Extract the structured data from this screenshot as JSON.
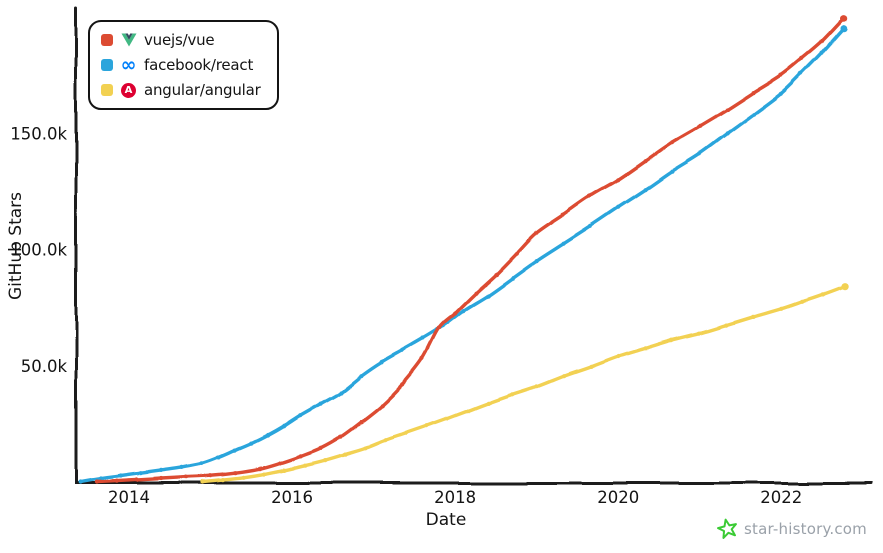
{
  "chart_data": {
    "type": "line",
    "title": "",
    "xlabel": "Date",
    "ylabel": "GitHub Stars",
    "grid": false,
    "legend_position": "top-left",
    "x_range_years": [
      2013.35,
      2023.1
    ],
    "y_range_stars": [
      0,
      202600
    ],
    "x_ticks": [
      {
        "year": 2014,
        "label": "2014"
      },
      {
        "year": 2016,
        "label": "2016"
      },
      {
        "year": 2018,
        "label": "2018"
      },
      {
        "year": 2020,
        "label": "2020"
      },
      {
        "year": 2022,
        "label": "2022"
      }
    ],
    "y_ticks": [
      {
        "stars": 50000,
        "label": "50.0k"
      },
      {
        "stars": 100000,
        "label": "100.0k"
      },
      {
        "stars": 150000,
        "label": "150.0k"
      }
    ],
    "series": [
      {
        "name": "vuejs/vue",
        "color": "#DC4B32",
        "icon": "vue-logo",
        "icon_colors": {
          "primary": "#41B883",
          "secondary": "#35495E"
        },
        "points": [
          [
            2013.6,
            0
          ],
          [
            2013.85,
            400
          ],
          [
            2014.1,
            900
          ],
          [
            2014.4,
            1500
          ],
          [
            2014.7,
            2100
          ],
          [
            2015.0,
            2700
          ],
          [
            2015.3,
            3800
          ],
          [
            2015.6,
            5500
          ],
          [
            2015.85,
            8000
          ],
          [
            2016.1,
            11000
          ],
          [
            2016.35,
            14500
          ],
          [
            2016.6,
            19500
          ],
          [
            2016.85,
            26000
          ],
          [
            2017.1,
            33000
          ],
          [
            2017.35,
            42000
          ],
          [
            2017.6,
            53000
          ],
          [
            2017.8,
            66000
          ],
          [
            2018.0,
            72500
          ],
          [
            2018.25,
            81000
          ],
          [
            2018.5,
            89000
          ],
          [
            2018.75,
            98000
          ],
          [
            2019.0,
            107000
          ],
          [
            2019.33,
            115000
          ],
          [
            2019.66,
            123000
          ],
          [
            2020.0,
            130000
          ],
          [
            2020.33,
            138000
          ],
          [
            2020.66,
            146000
          ],
          [
            2021.0,
            153000
          ],
          [
            2021.33,
            160000
          ],
          [
            2021.66,
            167500
          ],
          [
            2022.0,
            175000
          ],
          [
            2022.25,
            182000
          ],
          [
            2022.5,
            189500
          ],
          [
            2022.77,
            199500
          ]
        ]
      },
      {
        "name": "facebook/react",
        "color": "#2BA5DC",
        "icon": "meta-infinity-logo",
        "icon_colors": {
          "primary": "#0180FA"
        },
        "points": [
          [
            2013.4,
            0
          ],
          [
            2013.65,
            1500
          ],
          [
            2013.9,
            2600
          ],
          [
            2014.15,
            3800
          ],
          [
            2014.4,
            5000
          ],
          [
            2014.65,
            6300
          ],
          [
            2014.9,
            8000
          ],
          [
            2015.1,
            10500
          ],
          [
            2015.3,
            13500
          ],
          [
            2015.5,
            16500
          ],
          [
            2015.7,
            20000
          ],
          [
            2015.9,
            24000
          ],
          [
            2016.1,
            28500
          ],
          [
            2016.35,
            33500
          ],
          [
            2016.6,
            38500
          ],
          [
            2016.85,
            45500
          ],
          [
            2017.1,
            51500
          ],
          [
            2017.35,
            56500
          ],
          [
            2017.6,
            61500
          ],
          [
            2017.85,
            67000
          ],
          [
            2018.1,
            73500
          ],
          [
            2018.4,
            80000
          ],
          [
            2018.7,
            87500
          ],
          [
            2019.0,
            95000
          ],
          [
            2019.33,
            102500
          ],
          [
            2019.66,
            110000
          ],
          [
            2020.0,
            118000
          ],
          [
            2020.33,
            125500
          ],
          [
            2020.66,
            133500
          ],
          [
            2021.0,
            141000
          ],
          [
            2021.33,
            149500
          ],
          [
            2021.66,
            158000
          ],
          [
            2022.0,
            167000
          ],
          [
            2022.25,
            175500
          ],
          [
            2022.5,
            184500
          ],
          [
            2022.77,
            195000
          ]
        ]
      },
      {
        "name": "angular/angular",
        "color": "#F2D152",
        "icon": "angular-logo",
        "icon_colors": {
          "primary": "#DD0031",
          "letter": "A"
        },
        "points": [
          [
            2014.9,
            0
          ],
          [
            2015.15,
            800
          ],
          [
            2015.4,
            1800
          ],
          [
            2015.65,
            3200
          ],
          [
            2015.9,
            5000
          ],
          [
            2016.15,
            7000
          ],
          [
            2016.4,
            9200
          ],
          [
            2016.65,
            11800
          ],
          [
            2016.9,
            14500
          ],
          [
            2017.15,
            18000
          ],
          [
            2017.4,
            21000
          ],
          [
            2017.65,
            24000
          ],
          [
            2017.9,
            27200
          ],
          [
            2018.15,
            30500
          ],
          [
            2018.4,
            33800
          ],
          [
            2018.7,
            37500
          ],
          [
            2019.0,
            41000
          ],
          [
            2019.33,
            45500
          ],
          [
            2019.66,
            49500
          ],
          [
            2020.0,
            54000
          ],
          [
            2020.33,
            57500
          ],
          [
            2020.66,
            61000
          ],
          [
            2021.0,
            64000
          ],
          [
            2021.33,
            67500
          ],
          [
            2021.66,
            71000
          ],
          [
            2022.0,
            74500
          ],
          [
            2022.25,
            77500
          ],
          [
            2022.5,
            80500
          ],
          [
            2022.77,
            84000
          ]
        ]
      }
    ],
    "axis_color": "#1B1B1B"
  },
  "watermark": {
    "label": "star-history.com",
    "star_color": "#3BCB35",
    "text_color": "#9AA1A9"
  }
}
